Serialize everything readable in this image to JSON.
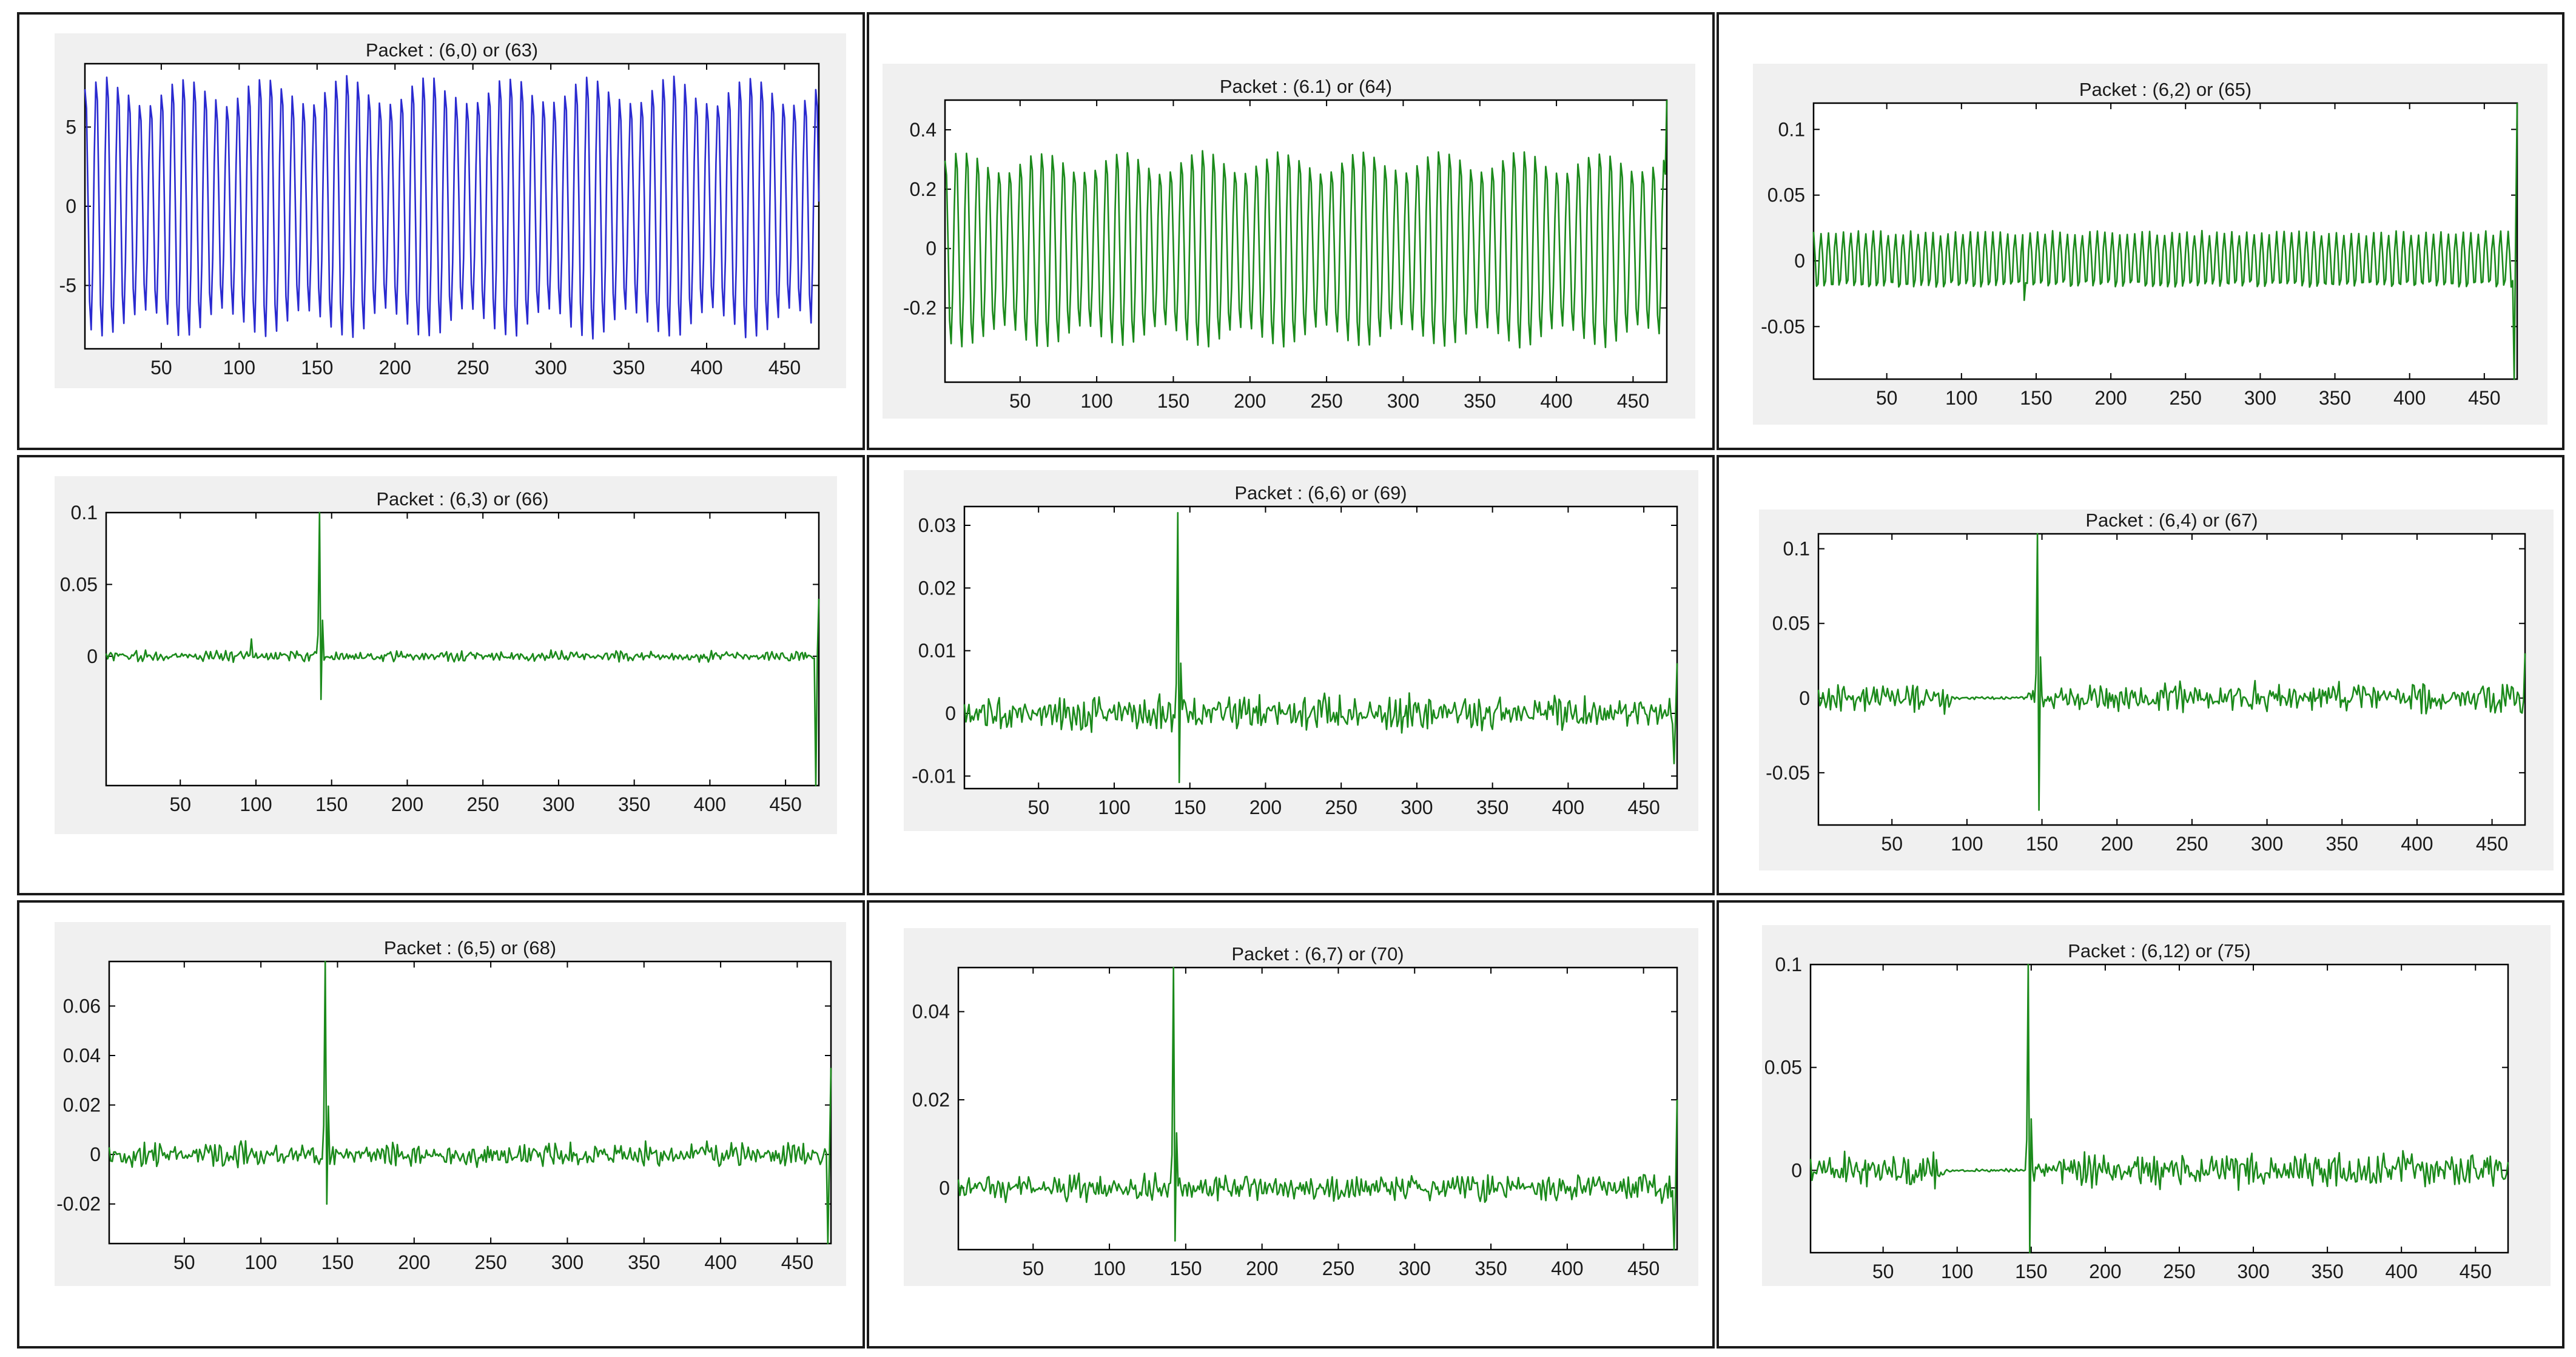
{
  "figure": {
    "description_layout": "3x3 grid of wavelet packet signal plots",
    "colors": {
      "blue": "#2a2ad0",
      "green": "#1b8a1b"
    }
  },
  "chart_data": [
    {
      "type": "line",
      "title": "Packet : (6,0) or (63)",
      "color": "blue",
      "xlim": [
        1,
        472
      ],
      "ylim": [
        -9,
        9
      ],
      "xticks": [
        50,
        100,
        150,
        200,
        250,
        300,
        350,
        400,
        450
      ],
      "yticks": [
        -5,
        0,
        5
      ],
      "ytick_labels": [
        "-5",
        "0",
        "5"
      ],
      "signal": {
        "kind": "sinusoid",
        "period": 7,
        "amp": 7.5,
        "mod": 0.12,
        "modPeriod": 52,
        "noise": 0.02
      }
    },
    {
      "type": "line",
      "title": "Packet : (6.1) or (64)",
      "color": "green",
      "xlim": [
        1,
        472
      ],
      "ylim": [
        -0.45,
        0.5
      ],
      "xticks": [
        50,
        100,
        150,
        200,
        250,
        300,
        350,
        400,
        450
      ],
      "yticks": [
        -0.2,
        0,
        0.2,
        0.4
      ],
      "ytick_labels": [
        "-0.2",
        "0",
        "0.2",
        "0.4"
      ],
      "signal": {
        "kind": "sinusoid",
        "period": 7,
        "amp": 0.3,
        "offset": 0.0,
        "mod": 0.12,
        "modPeriod": 52,
        "noise": 0.02,
        "endSpike": 0.5
      }
    },
    {
      "type": "line",
      "title": "Packet : (6,2) or (65)",
      "color": "green",
      "xlim": [
        1,
        472
      ],
      "ylim": [
        -0.09,
        0.12
      ],
      "xticks": [
        50,
        100,
        150,
        200,
        250,
        300,
        350,
        400,
        450
      ],
      "yticks": [
        -0.05,
        0,
        0.05,
        0.1
      ],
      "ytick_labels": [
        "-0.05",
        "0",
        "0.05",
        "0.1"
      ],
      "signal": {
        "kind": "sinusoid",
        "period": 5,
        "amp": 0.021,
        "noise": 0.1,
        "jumpAt": 142,
        "jumpVal": -0.03,
        "endSpike": 0.12,
        "endDip": -0.09
      }
    },
    {
      "type": "line",
      "title": "Packet : (6,3) or (66)",
      "color": "green",
      "xlim": [
        1,
        472
      ],
      "ylim": [
        -0.09,
        0.1
      ],
      "xticks": [
        50,
        100,
        150,
        200,
        250,
        300,
        350,
        400,
        450
      ],
      "yticks": [
        0,
        0.05,
        0.1
      ],
      "ytick_labels": [
        "0",
        "0.05",
        "0.1"
      ],
      "signal": {
        "kind": "noise",
        "amp": 0.003,
        "spikeAt": 142,
        "spikeVal": 0.1,
        "spikeNeg": -0.03,
        "bumpAt": 97,
        "bumpVal": 0.012,
        "endSpike": 0.04,
        "endDip": -0.09
      }
    },
    {
      "type": "line",
      "title": "Packet : (6,6) or (69)",
      "color": "green",
      "xlim": [
        1,
        472
      ],
      "ylim": [
        -0.012,
        0.033
      ],
      "xticks": [
        50,
        100,
        150,
        200,
        250,
        300,
        350,
        400,
        450
      ],
      "yticks": [
        -0.01,
        0,
        0.01,
        0.02,
        0.03
      ],
      "ytick_labels": [
        "-0.01",
        "0",
        "0.01",
        "0.02",
        "0.03"
      ],
      "signal": {
        "kind": "noise",
        "amp": 0.0022,
        "spikeAt": 142,
        "spikeVal": 0.032,
        "spikeNeg": -0.011,
        "endSpike": 0.008,
        "endDip": -0.008
      }
    },
    {
      "type": "line",
      "title": "Packet : (6,4) or (67)",
      "color": "green",
      "xlim": [
        1,
        472
      ],
      "ylim": [
        -0.085,
        0.11
      ],
      "xticks": [
        50,
        100,
        150,
        200,
        250,
        300,
        350,
        400,
        450
      ],
      "yticks": [
        -0.05,
        0,
        0.05,
        0.1
      ],
      "ytick_labels": [
        "-0.05",
        "0",
        "0.05",
        "0.1"
      ],
      "signal": {
        "kind": "noise",
        "amp": 0.008,
        "spikeAt": 147,
        "spikeVal": 0.11,
        "spikeNeg": -0.075,
        "quietFrom": 90,
        "quietTo": 140,
        "endSpike": 0.03,
        "endDip": -0.01
      }
    },
    {
      "type": "line",
      "title": "Packet : (6,5) or (68)",
      "color": "green",
      "xlim": [
        1,
        472
      ],
      "ylim": [
        -0.036,
        0.078
      ],
      "xticks": [
        50,
        100,
        150,
        200,
        250,
        300,
        350,
        400,
        450
      ],
      "yticks": [
        -0.02,
        0,
        0.02,
        0.04,
        0.06
      ],
      "ytick_labels": [
        "-0.02",
        "0",
        "0.02",
        "0.04",
        "0.06"
      ],
      "signal": {
        "kind": "noise",
        "amp": 0.004,
        "spikeAt": 142,
        "spikeVal": 0.078,
        "spikeNeg": -0.02,
        "endSpike": 0.035,
        "endDip": -0.036
      }
    },
    {
      "type": "line",
      "title": "Packet : (6,7) or (70)",
      "color": "green",
      "xlim": [
        1,
        472
      ],
      "ylim": [
        -0.014,
        0.05
      ],
      "xticks": [
        50,
        100,
        150,
        200,
        250,
        300,
        350,
        400,
        450
      ],
      "yticks": [
        0,
        0.02,
        0.04
      ],
      "ytick_labels": [
        "0",
        "0.02",
        "0.04"
      ],
      "signal": {
        "kind": "noise",
        "amp": 0.0025,
        "spikeAt": 142,
        "spikeVal": 0.05,
        "spikeNeg": -0.012,
        "endSpike": 0.02,
        "endDip": -0.014
      }
    },
    {
      "type": "line",
      "title": "Packet : (6,12) or (75)",
      "color": "green",
      "xlim": [
        1,
        472
      ],
      "ylim": [
        -0.04,
        0.1
      ],
      "xticks": [
        50,
        100,
        150,
        200,
        250,
        300,
        350,
        400,
        450
      ],
      "yticks": [
        0,
        0.05,
        0.1
      ],
      "ytick_labels": [
        "0",
        "0.05",
        "0.1"
      ],
      "signal": {
        "kind": "noise",
        "amp": 0.007,
        "spikeAt": 148,
        "spikeVal": 0.1,
        "spikeNeg": -0.04,
        "quietFrom": 92,
        "quietTo": 146,
        "endSpike": 0.004,
        "endDip": -0.004
      }
    }
  ]
}
